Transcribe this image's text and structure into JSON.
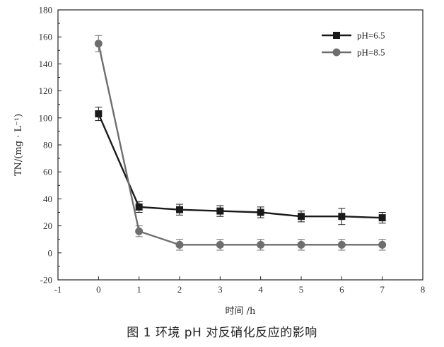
{
  "figure": {
    "caption": "图 1   环境 pH 对反硝化反应的影响"
  },
  "chart_data": {
    "type": "line",
    "title": "",
    "xlabel": "时间 /h",
    "ylabel": "TN/(mg · L⁻¹)",
    "xlim": [
      -1,
      8
    ],
    "ylim": [
      -20,
      180
    ],
    "xticks": [
      -1,
      0,
      1,
      2,
      3,
      4,
      5,
      6,
      7,
      8
    ],
    "yticks": [
      -20,
      0,
      20,
      40,
      60,
      80,
      100,
      120,
      140,
      160,
      180
    ],
    "grid": false,
    "legend_position": "top-right",
    "series": [
      {
        "name": "pH=6.5",
        "marker": "square",
        "color": "#1a1a1a",
        "x": [
          0,
          1,
          2,
          3,
          4,
          5,
          6,
          7
        ],
        "y": [
          103,
          34,
          32,
          31,
          30,
          27,
          27,
          26
        ],
        "error": [
          5,
          4,
          4,
          4,
          4,
          4,
          6,
          4
        ]
      },
      {
        "name": "pH=8.5",
        "marker": "circle",
        "color": "#6e6e6e",
        "x": [
          0,
          1,
          2,
          3,
          4,
          5,
          6,
          7
        ],
        "y": [
          155,
          16,
          6,
          6,
          6,
          6,
          6,
          6
        ],
        "error": [
          6,
          4,
          4,
          4,
          4,
          4,
          4,
          4
        ]
      }
    ]
  }
}
